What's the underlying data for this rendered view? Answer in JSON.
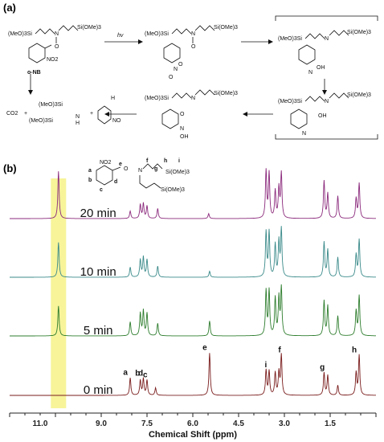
{
  "panel_a": {
    "label": "(a)",
    "compound_label": "o-NB",
    "hv": "hv",
    "silyl": "(MeO)3Si",
    "silyl_r": "Si(OMe)3",
    "no2": "NO2",
    "co2": "CO2",
    "plus": "+",
    "nh": "N",
    "h": "H",
    "n_o": "N",
    "oh": "OH",
    "o_minus": "O",
    "oh_plus": "OH"
  },
  "chart_data": {
    "type": "line",
    "panel_label": "(b)",
    "xlabel": "Chemical Shift (ppm)",
    "x_ticks": [
      11.0,
      9.0,
      7.5,
      6.0,
      4.5,
      3.0,
      1.5
    ],
    "x_tick_labels": [
      "11.0",
      "9.0",
      "7.5",
      "6.0",
      "4.5",
      "3.0",
      "1.5"
    ],
    "xlim": [
      12.0,
      0.0
    ],
    "highlight_ppm": [
      10.15,
      10.65
    ],
    "highlight_color": "#f7f49a",
    "series": [
      {
        "name": "20 min",
        "color": "#8b2a7c",
        "baseline": 0.0,
        "peaks": [
          {
            "ppm": 10.4,
            "h": 0.95
          },
          {
            "ppm": 8.05,
            "h": 0.15
          },
          {
            "ppm": 7.72,
            "h": 0.28
          },
          {
            "ppm": 7.62,
            "h": 0.3
          },
          {
            "ppm": 7.5,
            "h": 0.25
          },
          {
            "ppm": 7.15,
            "h": 0.2
          },
          {
            "ppm": 5.48,
            "h": 0.1
          },
          {
            "ppm": 3.6,
            "h": 0.95
          },
          {
            "ppm": 3.5,
            "h": 0.9
          },
          {
            "ppm": 3.3,
            "h": 0.55
          },
          {
            "ppm": 3.18,
            "h": 0.6
          },
          {
            "ppm": 3.1,
            "h": 0.9
          },
          {
            "ppm": 1.7,
            "h": 0.75
          },
          {
            "ppm": 1.58,
            "h": 0.5
          },
          {
            "ppm": 1.25,
            "h": 0.45
          },
          {
            "ppm": 0.65,
            "h": 0.4
          },
          {
            "ppm": 0.55,
            "h": 0.7
          }
        ]
      },
      {
        "name": "10 min",
        "color": "#3b8a8a",
        "baseline": 1.0,
        "peaks": [
          {
            "ppm": 10.4,
            "h": 0.7
          },
          {
            "ppm": 8.05,
            "h": 0.2
          },
          {
            "ppm": 7.72,
            "h": 0.35
          },
          {
            "ppm": 7.62,
            "h": 0.4
          },
          {
            "ppm": 7.5,
            "h": 0.35
          },
          {
            "ppm": 7.15,
            "h": 0.22
          },
          {
            "ppm": 5.45,
            "h": 0.12
          },
          {
            "ppm": 3.6,
            "h": 0.9
          },
          {
            "ppm": 3.5,
            "h": 0.9
          },
          {
            "ppm": 3.3,
            "h": 0.65
          },
          {
            "ppm": 3.18,
            "h": 0.7
          },
          {
            "ppm": 3.1,
            "h": 0.95
          },
          {
            "ppm": 1.7,
            "h": 0.7
          },
          {
            "ppm": 1.58,
            "h": 0.55
          },
          {
            "ppm": 1.25,
            "h": 0.4
          },
          {
            "ppm": 0.65,
            "h": 0.45
          },
          {
            "ppm": 0.55,
            "h": 0.75
          }
        ]
      },
      {
        "name": "5 min",
        "color": "#2e7d2e",
        "baseline": 2.0,
        "peaks": [
          {
            "ppm": 10.4,
            "h": 0.6
          },
          {
            "ppm": 8.05,
            "h": 0.28
          },
          {
            "ppm": 7.72,
            "h": 0.45
          },
          {
            "ppm": 7.62,
            "h": 0.5
          },
          {
            "ppm": 7.5,
            "h": 0.45
          },
          {
            "ppm": 7.15,
            "h": 0.25
          },
          {
            "ppm": 5.45,
            "h": 0.3
          },
          {
            "ppm": 3.6,
            "h": 0.9
          },
          {
            "ppm": 3.5,
            "h": 0.9
          },
          {
            "ppm": 3.3,
            "h": 0.75
          },
          {
            "ppm": 3.18,
            "h": 0.75
          },
          {
            "ppm": 3.1,
            "h": 0.95
          },
          {
            "ppm": 1.7,
            "h": 0.7
          },
          {
            "ppm": 1.58,
            "h": 0.6
          },
          {
            "ppm": 1.25,
            "h": 0.4
          },
          {
            "ppm": 0.65,
            "h": 0.5
          },
          {
            "ppm": 0.55,
            "h": 0.8
          }
        ]
      },
      {
        "name": "0 min",
        "color": "#7a1c1c",
        "baseline": 3.0,
        "peaks": [
          {
            "ppm": 8.05,
            "h": 0.35
          },
          {
            "ppm": 7.72,
            "h": 0.3
          },
          {
            "ppm": 7.62,
            "h": 0.33
          },
          {
            "ppm": 7.5,
            "h": 0.3
          },
          {
            "ppm": 7.22,
            "h": 0.15
          },
          {
            "ppm": 5.45,
            "h": 0.85
          },
          {
            "ppm": 3.6,
            "h": 0.5
          },
          {
            "ppm": 3.5,
            "h": 0.48
          },
          {
            "ppm": 3.3,
            "h": 0.45
          },
          {
            "ppm": 3.18,
            "h": 0.45
          },
          {
            "ppm": 3.1,
            "h": 0.8
          },
          {
            "ppm": 1.7,
            "h": 0.45
          },
          {
            "ppm": 1.58,
            "h": 0.4
          },
          {
            "ppm": 1.25,
            "h": 0.2
          },
          {
            "ppm": 0.65,
            "h": 0.45
          },
          {
            "ppm": 0.55,
            "h": 0.8
          }
        ]
      }
    ],
    "peak_labels": [
      {
        "label": "a",
        "ppm": 8.05
      },
      {
        "label": "b",
        "ppm": 7.65
      },
      {
        "label": "d",
        "ppm": 7.55
      },
      {
        "label": "c",
        "ppm": 7.4
      },
      {
        "label": "e",
        "ppm": 5.45
      },
      {
        "label": "i",
        "ppm": 3.45
      },
      {
        "label": "f",
        "ppm": 3.0
      },
      {
        "label": "g",
        "ppm": 1.6
      },
      {
        "label": "h",
        "ppm": 0.55
      }
    ],
    "inset_labels": [
      "a",
      "b",
      "c",
      "d",
      "e",
      "f",
      "g",
      "h",
      "i"
    ],
    "inset_text": {
      "no2": "NO2",
      "si1": "Si(OMe)3",
      "si2": "Si(OMe)3",
      "n": "N",
      "o": "O"
    }
  }
}
